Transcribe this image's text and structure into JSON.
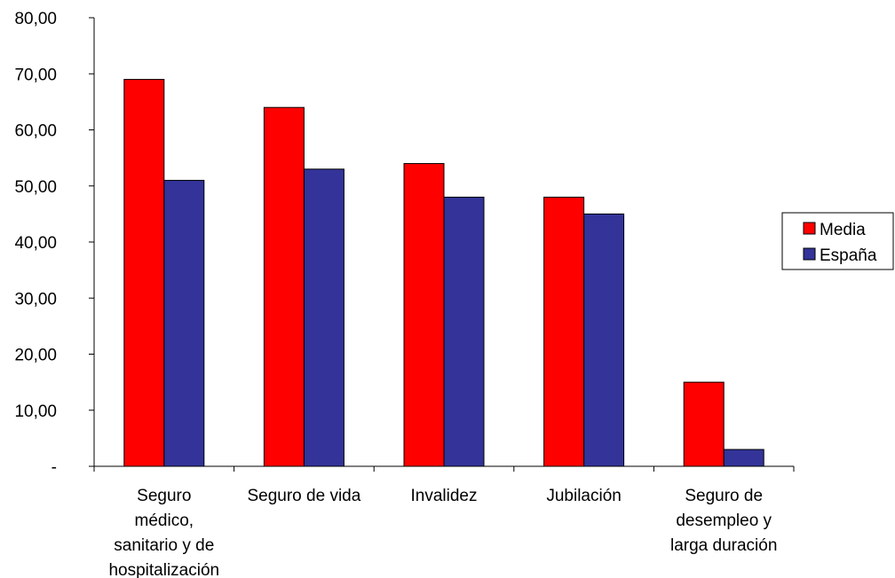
{
  "chart_data": {
    "type": "bar",
    "categories": [
      [
        "Seguro",
        "médico,",
        "sanitario y de",
        "hospitalización"
      ],
      [
        "Seguro de vida"
      ],
      [
        "Invalidez"
      ],
      [
        "Jubilación"
      ],
      [
        "Seguro de",
        "desempleo y",
        "larga duración"
      ]
    ],
    "series": [
      {
        "name": "Media",
        "color": "#ff0000",
        "values": [
          69,
          64,
          54,
          48,
          15
        ]
      },
      {
        "name": "España",
        "color": "#333399",
        "values": [
          51,
          53,
          48,
          45,
          3
        ]
      }
    ],
    "ylim": [
      0,
      80
    ],
    "yticks": [
      0,
      10,
      20,
      30,
      40,
      50,
      60,
      70,
      80
    ],
    "ytick_labels": [
      "-",
      "10,00",
      "20,00",
      "30,00",
      "40,00",
      "50,00",
      "60,00",
      "70,00",
      "80,00"
    ],
    "grid": false,
    "legend_position": "right"
  }
}
